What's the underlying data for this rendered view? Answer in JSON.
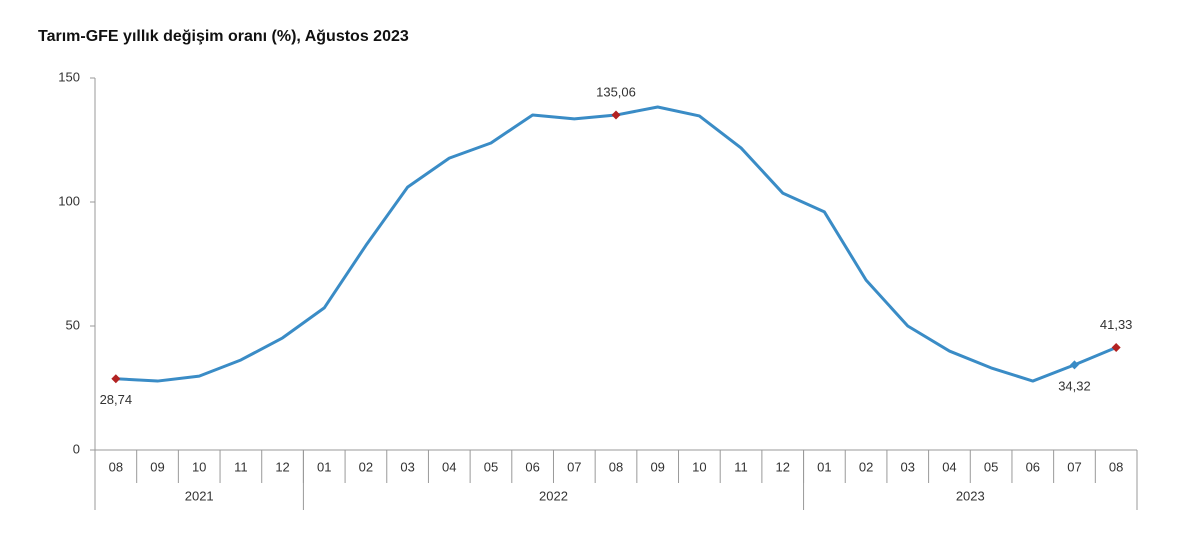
{
  "chart_data": {
    "type": "line",
    "title": "Tarım-GFE yıllık değişim oranı (%), Ağustos 2023",
    "groups": [
      {
        "name": "2021",
        "categories": [
          "08",
          "09",
          "10",
          "11",
          "12"
        ]
      },
      {
        "name": "2022",
        "categories": [
          "01",
          "02",
          "03",
          "04",
          "05",
          "06",
          "07",
          "08",
          "09",
          "10",
          "11",
          "12"
        ]
      },
      {
        "name": "2023",
        "categories": [
          "01",
          "02",
          "03",
          "04",
          "05",
          "06",
          "07",
          "08"
        ]
      }
    ],
    "series": [
      {
        "color": "#3a8cc6",
        "values": [
          28.74,
          27.8,
          29.8,
          36.3,
          45.2,
          57.3,
          82.5,
          106,
          117.7,
          123.8,
          135.1,
          133.5,
          135.06,
          138.3,
          134.7,
          121.8,
          103.6,
          96,
          68.5,
          50,
          39.9,
          33.1,
          27.8,
          34.32,
          41.33
        ],
        "value_labels": [
          "28,74",
          null,
          null,
          null,
          null,
          null,
          null,
          null,
          null,
          null,
          null,
          null,
          "135,06",
          null,
          null,
          null,
          null,
          null,
          null,
          null,
          null,
          null,
          null,
          "34,32",
          "41,33"
        ],
        "marker_colors": [
          "#b22222",
          null,
          null,
          null,
          null,
          null,
          null,
          null,
          null,
          null,
          null,
          null,
          "#b22222",
          null,
          null,
          null,
          null,
          null,
          null,
          null,
          null,
          null,
          null,
          "#3a8cc6",
          "#b22222"
        ]
      }
    ],
    "ylim": [
      0,
      150
    ],
    "yticks": [
      0,
      50,
      100,
      150
    ],
    "grid": false
  }
}
